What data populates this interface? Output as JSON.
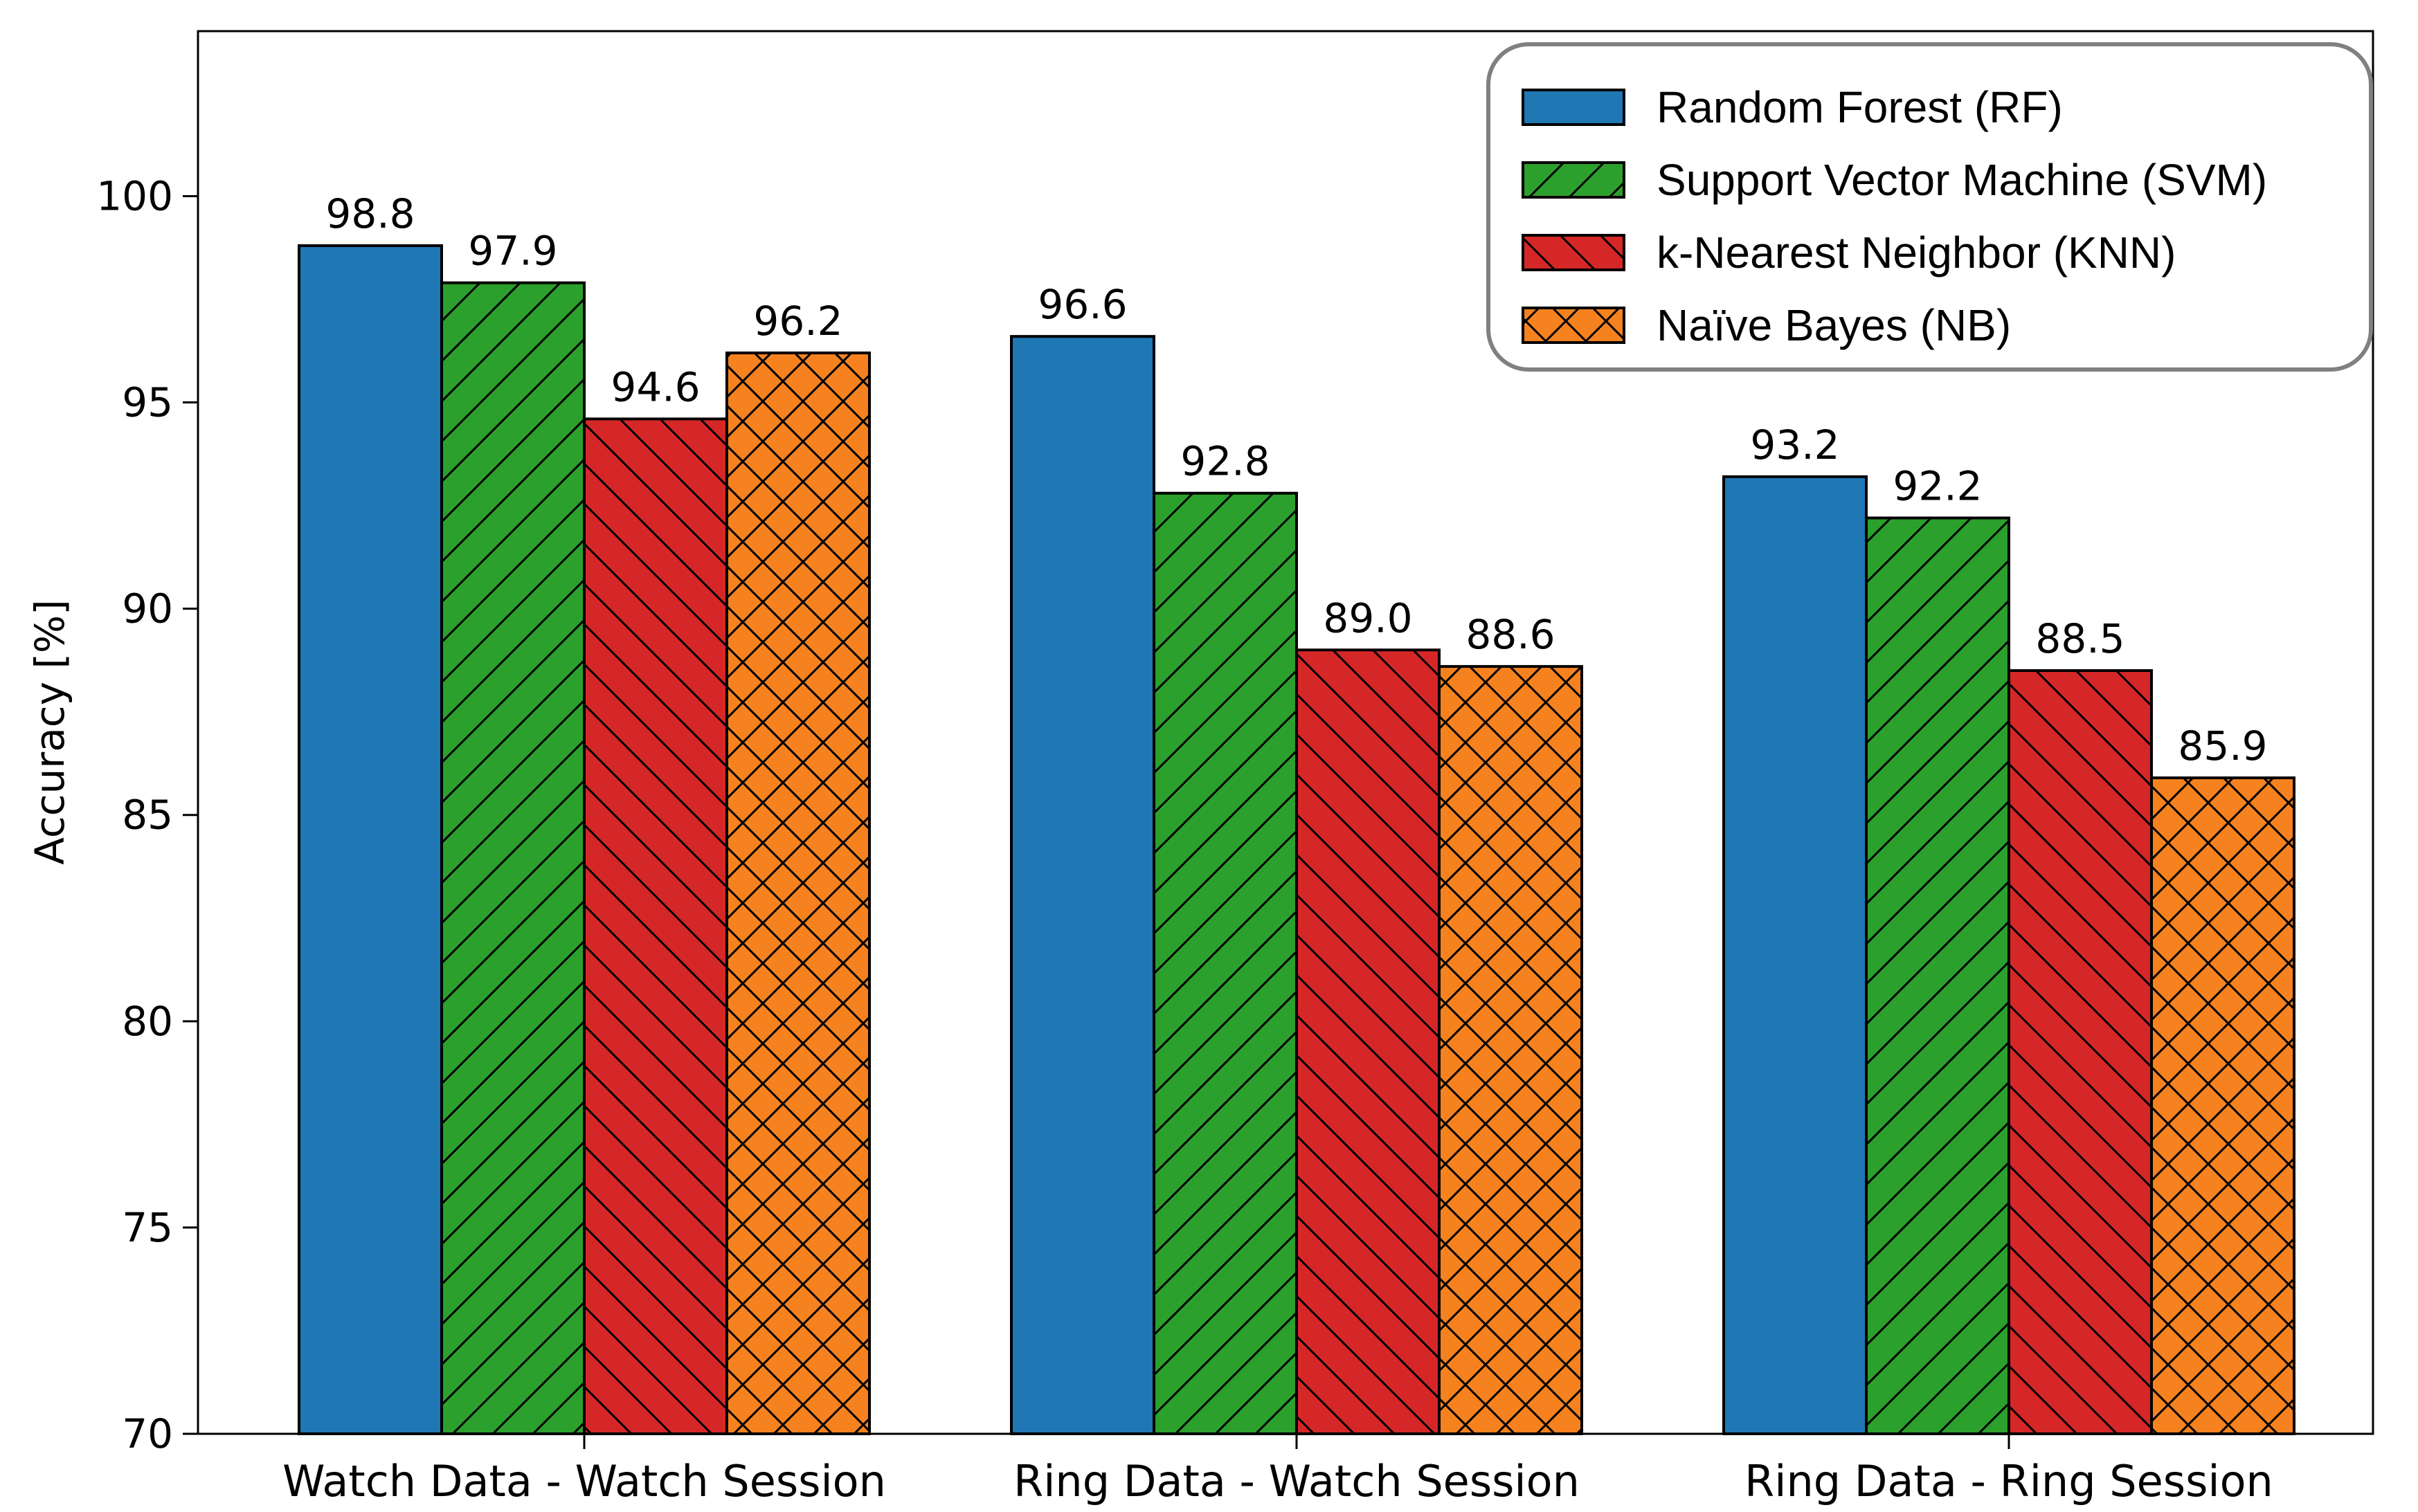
{
  "chart_data": {
    "type": "bar",
    "title": "",
    "xlabel": "",
    "ylabel": "Accuracy [%]",
    "ylim": [
      70,
      104
    ],
    "yticks": [
      70,
      75,
      80,
      85,
      90,
      95,
      100
    ],
    "grid": false,
    "legend_position": "top-right",
    "categories": [
      "Watch Data - Watch Session",
      "Ring Data - Watch Session",
      "Ring Data - Ring Session"
    ],
    "series": [
      {
        "name": "Random Forest (RF)",
        "color": "#1f77b4",
        "hatch": "none",
        "values": [
          98.8,
          96.6,
          93.2
        ],
        "labels": [
          "98.8",
          "96.6",
          "93.2"
        ]
      },
      {
        "name": "Support Vector Machine (SVM)",
        "color": "#2ca02c",
        "hatch": "forward",
        "values": [
          97.9,
          92.8,
          92.2
        ],
        "labels": [
          "97.9",
          "92.8",
          "92.2"
        ]
      },
      {
        "name": "k-Nearest Neighbor (KNN)",
        "color": "#d62728",
        "hatch": "back",
        "values": [
          94.6,
          89.0,
          88.5
        ],
        "labels": [
          "94.6",
          "89.0",
          "88.5"
        ]
      },
      {
        "name": "Naïve Bayes (NB)",
        "color": "#f5821f",
        "hatch": "cross",
        "values": [
          96.2,
          88.6,
          85.9
        ],
        "labels": [
          "96.2",
          "88.6",
          "85.9"
        ]
      }
    ]
  }
}
